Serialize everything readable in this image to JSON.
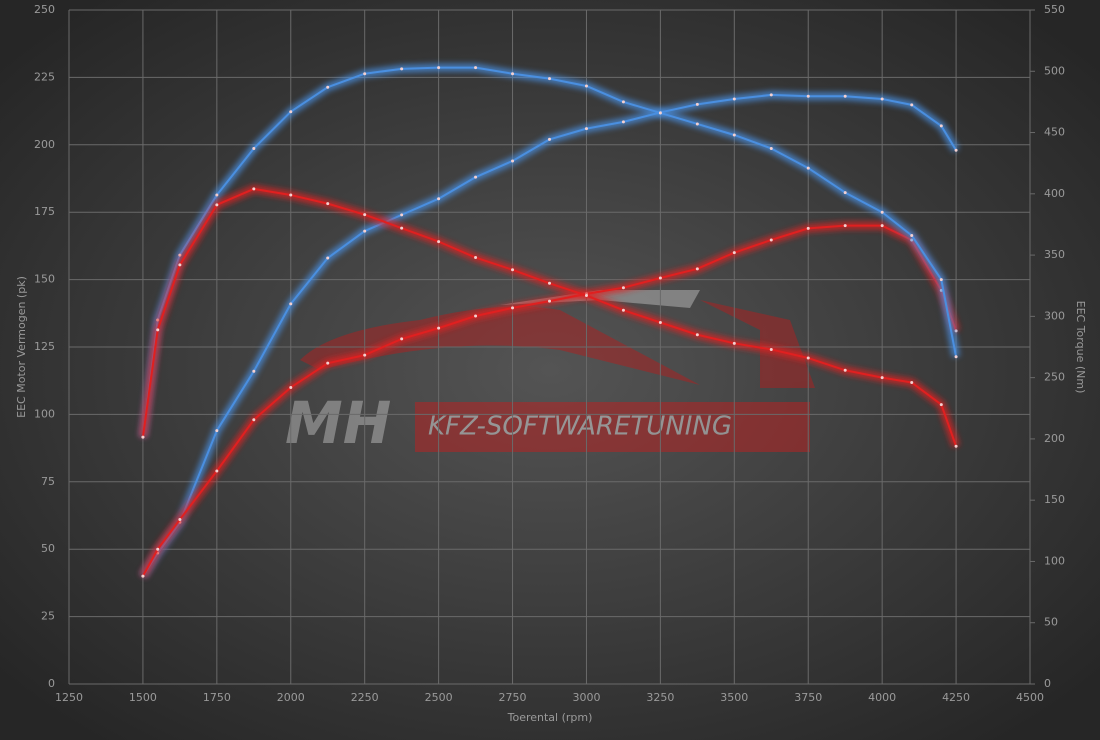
{
  "chart_data": {
    "type": "line",
    "x_label": "Toerental (rpm)",
    "y_label": "EEC Motor Vermogen (pk)",
    "y2_label": "EEC Torque (Nm)",
    "watermark": [
      "MH",
      "KFZ-SOFTWARETUNING"
    ],
    "x": [
      1500,
      1550,
      1625,
      1750,
      1875,
      2000,
      2125,
      2250,
      2375,
      2500,
      2625,
      2750,
      2875,
      3000,
      3125,
      3250,
      3375,
      3500,
      3625,
      3750,
      3875,
      4000,
      4100,
      4200,
      4250
    ],
    "series": [
      {
        "color": "#4a8fe0",
        "values": [
          40,
          48.6,
          60,
          94,
          116,
          141,
          158,
          168,
          174,
          180,
          188,
          194,
          202,
          206,
          208.5,
          212,
          215,
          217,
          218.5,
          218,
          218,
          217,
          214.8,
          207,
          198
        ]
      },
      {
        "color": "#e02020",
        "values": [
          40,
          50,
          61,
          79,
          98,
          110,
          119,
          122,
          128,
          132,
          136.5,
          139.5,
          142,
          144.7,
          147,
          150.6,
          154,
          160,
          164.7,
          169,
          170,
          170,
          164.7,
          146,
          131
        ]
      },
      {
        "color": "#4a8fe0",
        "axis": "y2",
        "values": [
          201.5,
          297,
          350,
          399,
          437,
          467,
          487,
          498,
          502,
          503,
          503,
          498,
          494,
          488,
          475,
          466,
          457,
          448,
          437,
          421,
          401,
          385,
          366,
          330,
          267
        ]
      },
      {
        "color": "#e02020",
        "axis": "y2",
        "values": [
          201.5,
          289,
          342,
          391,
          404,
          399,
          392,
          383,
          372,
          361,
          348,
          338,
          327,
          317,
          305,
          295,
          285,
          278,
          273,
          266,
          256,
          250,
          246,
          228,
          194
        ]
      }
    ],
    "xlim": [
      1250,
      4500
    ],
    "xticks": [
      1250,
      1500,
      1750,
      2000,
      2250,
      2500,
      2750,
      3000,
      3250,
      3500,
      3750,
      4000,
      4250,
      4500
    ],
    "ylim": [
      0,
      250
    ],
    "yticks": [
      0,
      25,
      50,
      75,
      100,
      125,
      150,
      175,
      200,
      225,
      250
    ],
    "y2lim": [
      0,
      550
    ],
    "y2ticks": [
      0,
      50,
      100,
      150,
      200,
      250,
      300,
      350,
      400,
      450,
      500,
      550
    ],
    "grid": true
  }
}
